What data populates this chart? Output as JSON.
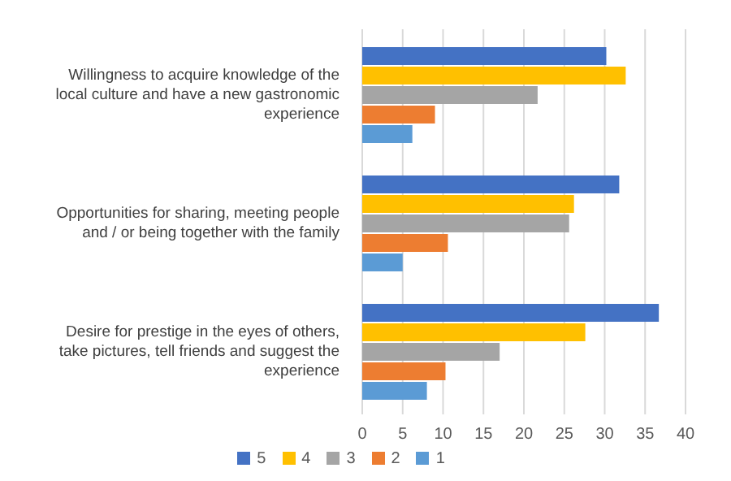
{
  "chart_data": {
    "type": "bar",
    "orientation": "horizontal",
    "categories": [
      "Willingness to acquire knowledge of the local culture and have a new gastronomic experience",
      "Opportunities for sharing, meeting people and / or being together with the family",
      "Desire for prestige in the eyes of others, take pictures, tell friends and suggest the experience"
    ],
    "series": [
      {
        "name": "5",
        "color": "#4472c4",
        "values": [
          30.2,
          31.8,
          36.7
        ]
      },
      {
        "name": "4",
        "color": "#ffc000",
        "values": [
          32.6,
          26.2,
          27.6
        ]
      },
      {
        "name": "3",
        "color": "#a5a5a5",
        "values": [
          21.7,
          25.6,
          17.0
        ]
      },
      {
        "name": "2",
        "color": "#ed7d31",
        "values": [
          9.0,
          10.6,
          10.3
        ]
      },
      {
        "name": "1",
        "color": "#5b9bd5",
        "values": [
          6.2,
          5.0,
          8.0
        ]
      }
    ],
    "xlim": [
      0,
      40
    ],
    "xticks": [
      0,
      5,
      10,
      15,
      20,
      25,
      30,
      35,
      40
    ],
    "grid": "x",
    "legend": "bottom"
  }
}
